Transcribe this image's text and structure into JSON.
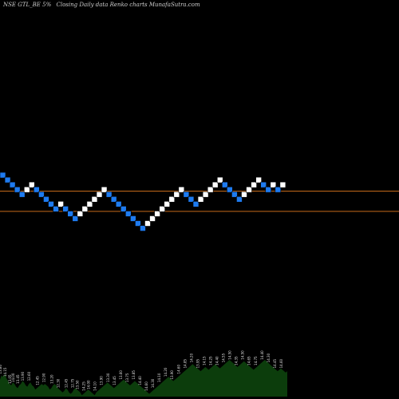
{
  "header": {
    "symbol": "NSE GTL_BE 5%",
    "description": "Closing Daily data Renko charts MunafaSutra.com"
  },
  "colors": {
    "background": "#000000",
    "up_brick": "#ffffff",
    "down_brick": "#1e7bf0",
    "brick_border": "#000000",
    "line": "#c56a1a",
    "volume": "#0c3d0c"
  },
  "chart_data": {
    "type": "renko",
    "brick_size_label": "5%",
    "bricks": [
      {
        "level": 0,
        "dir": "down"
      },
      {
        "level": -1,
        "dir": "down"
      },
      {
        "level": -2,
        "dir": "down"
      },
      {
        "level": -3,
        "dir": "down"
      },
      {
        "level": -4,
        "dir": "down"
      },
      {
        "level": -3,
        "dir": "up"
      },
      {
        "level": -2,
        "dir": "up"
      },
      {
        "level": -3,
        "dir": "down"
      },
      {
        "level": -4,
        "dir": "down"
      },
      {
        "level": -5,
        "dir": "down"
      },
      {
        "level": -6,
        "dir": "down"
      },
      {
        "level": -7,
        "dir": "down"
      },
      {
        "level": -6,
        "dir": "up"
      },
      {
        "level": -7,
        "dir": "down"
      },
      {
        "level": -8,
        "dir": "down"
      },
      {
        "level": -9,
        "dir": "down"
      },
      {
        "level": -8,
        "dir": "up"
      },
      {
        "level": -7,
        "dir": "up"
      },
      {
        "level": -6,
        "dir": "up"
      },
      {
        "level": -5,
        "dir": "up"
      },
      {
        "level": -4,
        "dir": "up"
      },
      {
        "level": -3,
        "dir": "up"
      },
      {
        "level": -4,
        "dir": "down"
      },
      {
        "level": -5,
        "dir": "down"
      },
      {
        "level": -6,
        "dir": "down"
      },
      {
        "level": -7,
        "dir": "down"
      },
      {
        "level": -8,
        "dir": "down"
      },
      {
        "level": -9,
        "dir": "down"
      },
      {
        "level": -10,
        "dir": "down"
      },
      {
        "level": -11,
        "dir": "down"
      },
      {
        "level": -10,
        "dir": "up"
      },
      {
        "level": -9,
        "dir": "up"
      },
      {
        "level": -8,
        "dir": "up"
      },
      {
        "level": -7,
        "dir": "up"
      },
      {
        "level": -6,
        "dir": "up"
      },
      {
        "level": -5,
        "dir": "up"
      },
      {
        "level": -4,
        "dir": "up"
      },
      {
        "level": -3,
        "dir": "up"
      },
      {
        "level": -4,
        "dir": "down"
      },
      {
        "level": -5,
        "dir": "down"
      },
      {
        "level": -6,
        "dir": "down"
      },
      {
        "level": -5,
        "dir": "up"
      },
      {
        "level": -4,
        "dir": "up"
      },
      {
        "level": -3,
        "dir": "up"
      },
      {
        "level": -2,
        "dir": "up"
      },
      {
        "level": -1,
        "dir": "up"
      },
      {
        "level": -2,
        "dir": "down"
      },
      {
        "level": -3,
        "dir": "down"
      },
      {
        "level": -4,
        "dir": "down"
      },
      {
        "level": -5,
        "dir": "down"
      },
      {
        "level": -4,
        "dir": "up"
      },
      {
        "level": -3,
        "dir": "up"
      },
      {
        "level": -2,
        "dir": "up"
      },
      {
        "level": -1,
        "dir": "up"
      },
      {
        "level": -2,
        "dir": "down"
      },
      {
        "level": -3,
        "dir": "down"
      },
      {
        "level": -2,
        "dir": "up"
      },
      {
        "level": -3,
        "dir": "down"
      },
      {
        "level": -2,
        "dir": "up"
      }
    ],
    "reference_lines": [
      -3.3,
      -7.5
    ],
    "volume": {
      "values": [
        12,
        15,
        14,
        16,
        13,
        11,
        9,
        8,
        10,
        9,
        7,
        6,
        8,
        9,
        11,
        10,
        8,
        7,
        9,
        10,
        8,
        7,
        5,
        6,
        7,
        8,
        9,
        8,
        9,
        8,
        7,
        5,
        6,
        8,
        9,
        8,
        6,
        5,
        4,
        3,
        4,
        6,
        5,
        3,
        2,
        3,
        5,
        6,
        5,
        4,
        3,
        1,
        2,
        3,
        4,
        5,
        4,
        3,
        2,
        1,
        3,
        4,
        5,
        6,
        7,
        8,
        9,
        10,
        9,
        8,
        7,
        6,
        7,
        8,
        9,
        10,
        11,
        12,
        11,
        10,
        9,
        8,
        9,
        10,
        11,
        10,
        9,
        8,
        7,
        6,
        5,
        4,
        3,
        2,
        3,
        4,
        5,
        6,
        7,
        8,
        9,
        10,
        11,
        12,
        13,
        14,
        13,
        12,
        11,
        12,
        13,
        14,
        15,
        16,
        17,
        18,
        19,
        20,
        21,
        22,
        23,
        22,
        21,
        20,
        19,
        18,
        19,
        20,
        21,
        20,
        19,
        20,
        21,
        22,
        23,
        22,
        21,
        20,
        21,
        22,
        23,
        24,
        25,
        26,
        25,
        24,
        23,
        22,
        21,
        22,
        23,
        24,
        25,
        24,
        23,
        22,
        21,
        20,
        19,
        20,
        21,
        22,
        23,
        24,
        25,
        26,
        25,
        24,
        23,
        22,
        21,
        20,
        19,
        18,
        19,
        20,
        19,
        18,
        17,
        18
      ],
      "labels": [
        {
          "x_index": 1,
          "text": "13.80"
        },
        {
          "x_index": 4,
          "text": "14.15"
        },
        {
          "x_index": 7,
          "text": "13.05"
        },
        {
          "x_index": 9,
          "text": "14.00"
        },
        {
          "x_index": 12,
          "text": "13.45"
        },
        {
          "x_index": 15,
          "text": "13.90"
        },
        {
          "x_index": 19,
          "text": "12.60"
        },
        {
          "x_index": 24,
          "text": "12.45"
        },
        {
          "x_index": 28,
          "text": "12.90"
        },
        {
          "x_index": 33,
          "text": "13.20"
        },
        {
          "x_index": 37,
          "text": "12.30"
        },
        {
          "x_index": 42,
          "text": "12.45"
        },
        {
          "x_index": 46,
          "text": "12.75"
        },
        {
          "x_index": 49,
          "text": "13.50"
        },
        {
          "x_index": 53,
          "text": "14.25"
        },
        {
          "x_index": 56,
          "text": "14.00"
        },
        {
          "x_index": 60,
          "text": "14.10"
        },
        {
          "x_index": 64,
          "text": "13.90"
        },
        {
          "x_index": 68,
          "text": "13.30"
        },
        {
          "x_index": 72,
          "text": "13.45"
        },
        {
          "x_index": 76,
          "text": "13.60"
        },
        {
          "x_index": 80,
          "text": "13.75"
        },
        {
          "x_index": 84,
          "text": "13.85"
        },
        {
          "x_index": 88,
          "text": "14.40"
        },
        {
          "x_index": 92,
          "text": "14.60"
        },
        {
          "x_index": 96,
          "text": "14.30"
        },
        {
          "x_index": 100,
          "text": "14.10"
        },
        {
          "x_index": 104,
          "text": "14.20"
        },
        {
          "x_index": 108,
          "text": "13.90"
        },
        {
          "x_index": 112,
          "text": "14.60"
        },
        {
          "x_index": 116,
          "text": "14.85"
        },
        {
          "x_index": 120,
          "text": "14.20"
        },
        {
          "x_index": 124,
          "text": "13.95"
        },
        {
          "x_index": 128,
          "text": "14.15"
        },
        {
          "x_index": 132,
          "text": "14.25"
        },
        {
          "x_index": 136,
          "text": "14.40"
        },
        {
          "x_index": 140,
          "text": "14.55"
        },
        {
          "x_index": 144,
          "text": "14.50"
        },
        {
          "x_index": 148,
          "text": "14.35"
        },
        {
          "x_index": 152,
          "text": "14.50"
        },
        {
          "x_index": 156,
          "text": "14.65"
        },
        {
          "x_index": 160,
          "text": "14.75"
        },
        {
          "x_index": 164,
          "text": "14.40"
        },
        {
          "x_index": 168,
          "text": "14.30"
        },
        {
          "x_index": 172,
          "text": "14.45"
        },
        {
          "x_index": 176,
          "text": "14.60"
        }
      ]
    }
  }
}
